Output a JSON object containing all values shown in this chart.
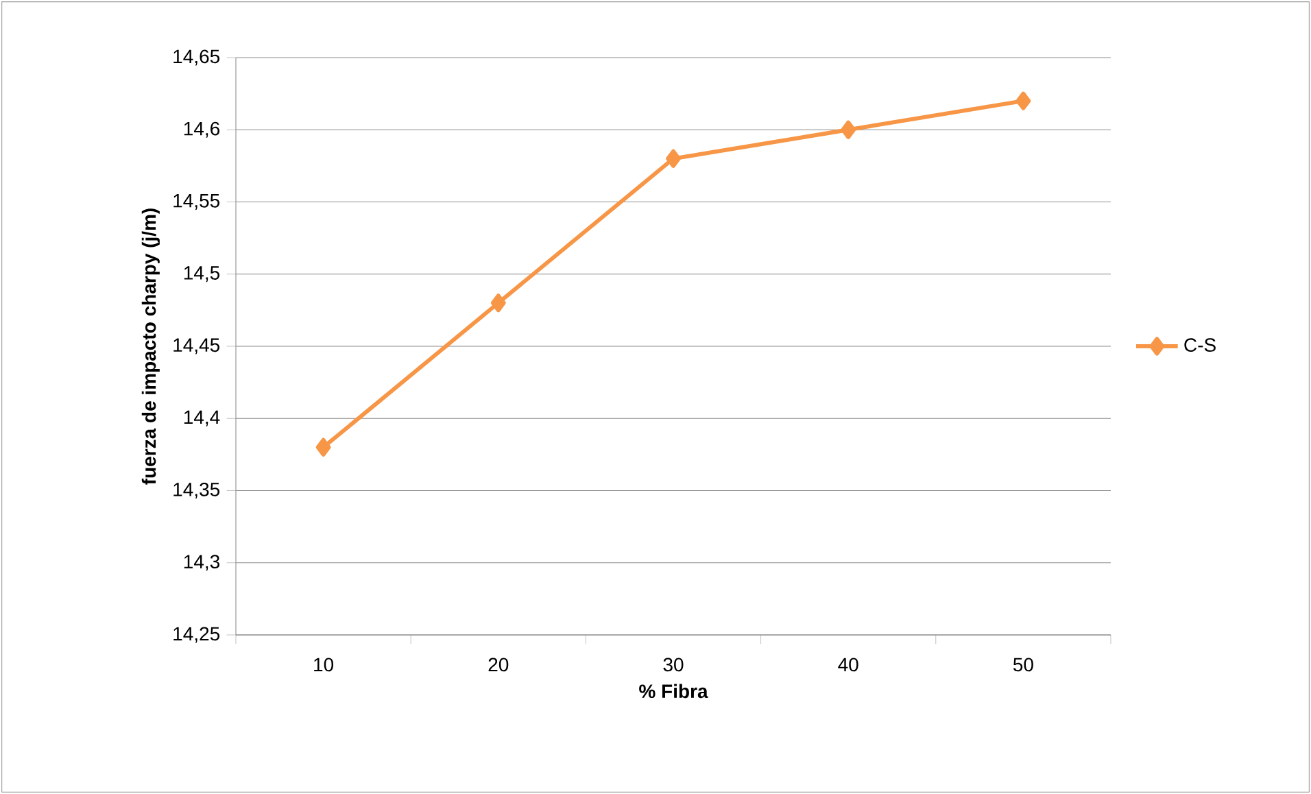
{
  "chart_data": {
    "type": "line",
    "xlabel": "% Fibra",
    "ylabel": "fuerza de impacto charpy (j/m)",
    "categories": [
      "10",
      "20",
      "30",
      "40",
      "50"
    ],
    "series": [
      {
        "name": "C-S",
        "color": "#f79646",
        "values": [
          14.38,
          14.48,
          14.58,
          14.6,
          14.62
        ]
      }
    ],
    "ylim": [
      14.25,
      14.65
    ],
    "yticks": [
      {
        "value": 14.25,
        "label": "14,25"
      },
      {
        "value": 14.3,
        "label": "14,3"
      },
      {
        "value": 14.35,
        "label": "14,35"
      },
      {
        "value": 14.4,
        "label": "14,4"
      },
      {
        "value": 14.45,
        "label": "14,45"
      },
      {
        "value": 14.5,
        "label": "14,5"
      },
      {
        "value": 14.55,
        "label": "14,55"
      },
      {
        "value": 14.6,
        "label": "14,6"
      },
      {
        "value": 14.65,
        "label": "14,65"
      }
    ],
    "grid": "y",
    "legend": "right",
    "marker": "diamond",
    "line_style": "solid"
  }
}
